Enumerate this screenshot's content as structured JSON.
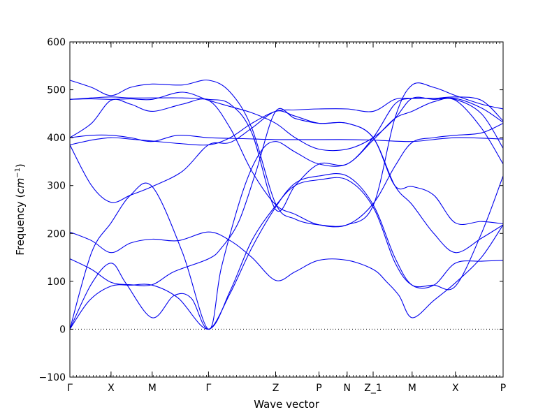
{
  "chart_data": {
    "type": "line",
    "title": "",
    "xlabel": "Wave vector",
    "ylabel": {
      "prefix": "Frequency (",
      "unit_main": "cm",
      "unit_sup": "−1",
      "suffix": ")"
    },
    "ylim": [
      -100,
      600
    ],
    "yticks": [
      -100,
      0,
      100,
      200,
      300,
      400,
      500,
      600
    ],
    "xlim": [
      0,
      10
    ],
    "high_symmetry_points": [
      {
        "label": "Γ",
        "x": 0
      },
      {
        "label": "X",
        "x": 0.95
      },
      {
        "label": "M",
        "x": 1.9
      },
      {
        "label": "Γ",
        "x": 3.2
      },
      {
        "label": "Z",
        "x": 4.75
      },
      {
        "label": "P",
        "x": 5.75
      },
      {
        "label": "N",
        "x": 6.4
      },
      {
        "label": "Z_1",
        "x": 7.0
      },
      {
        "label": "M",
        "x": 7.9
      },
      {
        "label": "X",
        "x": 8.9
      },
      {
        "label": "P",
        "x": 10
      }
    ],
    "zero_line": 0,
    "line_color": "#0000ee",
    "series": [
      {
        "points": [
          [
            0,
            0
          ],
          [
            0.5,
            95
          ],
          [
            0.95,
            138
          ],
          [
            1.3,
            95
          ],
          [
            1.9,
            24
          ],
          [
            2.4,
            70
          ],
          [
            2.8,
            65
          ],
          [
            3.2,
            0
          ],
          [
            3.7,
            75
          ],
          [
            4.2,
            170
          ],
          [
            4.75,
            255
          ],
          [
            5.2,
            305
          ],
          [
            5.75,
            320
          ],
          [
            6.4,
            320
          ],
          [
            7.0,
            260
          ],
          [
            7.5,
            150
          ],
          [
            7.9,
            92
          ],
          [
            8.4,
            92
          ],
          [
            8.9,
            138
          ],
          [
            9.5,
            142
          ],
          [
            10,
            144
          ]
        ]
      },
      {
        "points": [
          [
            0,
            0
          ],
          [
            0.45,
            60
          ],
          [
            0.95,
            90
          ],
          [
            1.4,
            92
          ],
          [
            1.9,
            92
          ],
          [
            2.5,
            65
          ],
          [
            3.2,
            0
          ],
          [
            3.7,
            80
          ],
          [
            4.2,
            185
          ],
          [
            4.75,
            258
          ],
          [
            5.2,
            300
          ],
          [
            5.75,
            312
          ],
          [
            6.4,
            312
          ],
          [
            7.0,
            255
          ],
          [
            7.5,
            140
          ],
          [
            7.9,
            92
          ],
          [
            8.4,
            92
          ],
          [
            8.9,
            90
          ],
          [
            9.5,
            200
          ],
          [
            10,
            320
          ]
        ]
      },
      {
        "points": [
          [
            0,
            0
          ],
          [
            0.5,
            160
          ],
          [
            0.95,
            222
          ],
          [
            1.4,
            280
          ],
          [
            1.9,
            298
          ],
          [
            2.6,
            160
          ],
          [
            3.2,
            0
          ],
          [
            3.5,
            130
          ],
          [
            4.0,
            290
          ],
          [
            4.4,
            370
          ],
          [
            4.75,
            392
          ],
          [
            5.2,
            370
          ],
          [
            5.75,
            345
          ],
          [
            6.4,
            345
          ],
          [
            7.0,
            395
          ],
          [
            7.5,
            440
          ],
          [
            7.9,
            455
          ],
          [
            8.4,
            475
          ],
          [
            8.9,
            478
          ],
          [
            9.5,
            420
          ],
          [
            10,
            345
          ]
        ]
      },
      {
        "points": [
          [
            0,
            147
          ],
          [
            0.5,
            125
          ],
          [
            0.95,
            98
          ],
          [
            1.4,
            93
          ],
          [
            1.9,
            93
          ],
          [
            2.4,
            120
          ],
          [
            3.2,
            147
          ],
          [
            3.5,
            170
          ],
          [
            3.9,
            225
          ],
          [
            4.3,
            330
          ],
          [
            4.75,
            455
          ],
          [
            5.2,
            440
          ],
          [
            5.75,
            430
          ],
          [
            6.4,
            430
          ],
          [
            7.0,
            400
          ],
          [
            7.5,
            300
          ],
          [
            7.9,
            298
          ],
          [
            8.4,
            280
          ],
          [
            8.9,
            222
          ],
          [
            9.5,
            225
          ],
          [
            10,
            220
          ]
        ]
      },
      {
        "points": [
          [
            0,
            203
          ],
          [
            0.5,
            185
          ],
          [
            0.95,
            160
          ],
          [
            1.4,
            180
          ],
          [
            1.9,
            188
          ],
          [
            2.5,
            185
          ],
          [
            3.2,
            203
          ],
          [
            3.7,
            185
          ],
          [
            4.2,
            150
          ],
          [
            4.75,
            102
          ],
          [
            5.2,
            120
          ],
          [
            5.75,
            144
          ],
          [
            6.4,
            144
          ],
          [
            7.0,
            125
          ],
          [
            7.3,
            100
          ],
          [
            7.6,
            70
          ],
          [
            7.9,
            24
          ],
          [
            8.4,
            60
          ],
          [
            8.9,
            97
          ],
          [
            9.5,
            150
          ],
          [
            10,
            218
          ]
        ]
      },
      {
        "points": [
          [
            0,
            385
          ],
          [
            0.5,
            300
          ],
          [
            0.95,
            265
          ],
          [
            1.4,
            280
          ],
          [
            1.9,
            298
          ],
          [
            2.6,
            330
          ],
          [
            3.2,
            385
          ],
          [
            3.7,
            390
          ],
          [
            4.2,
            420
          ],
          [
            4.75,
            455
          ],
          [
            5.2,
            445
          ],
          [
            5.75,
            430
          ],
          [
            6.4,
            430
          ],
          [
            7.0,
            400
          ],
          [
            7.5,
            300
          ],
          [
            7.9,
            260
          ],
          [
            8.4,
            200
          ],
          [
            8.9,
            160
          ],
          [
            9.5,
            190
          ],
          [
            10,
            218
          ]
        ]
      },
      {
        "points": [
          [
            0,
            400
          ],
          [
            0.5,
            405
          ],
          [
            0.95,
            405
          ],
          [
            1.4,
            400
          ],
          [
            1.9,
            392
          ],
          [
            2.5,
            405
          ],
          [
            3.2,
            400
          ],
          [
            4.0,
            398
          ],
          [
            4.75,
            396
          ],
          [
            5.75,
            396
          ],
          [
            6.4,
            396
          ],
          [
            7.0,
            395
          ],
          [
            7.9,
            392
          ],
          [
            8.9,
            400
          ],
          [
            10,
            397
          ]
        ]
      },
      {
        "points": [
          [
            0,
            400
          ],
          [
            0.5,
            430
          ],
          [
            0.95,
            478
          ],
          [
            1.4,
            470
          ],
          [
            1.9,
            455
          ],
          [
            2.6,
            470
          ],
          [
            3.2,
            478
          ],
          [
            3.7,
            420
          ],
          [
            4.2,
            330
          ],
          [
            4.75,
            260
          ],
          [
            5.2,
            240
          ],
          [
            5.75,
            218
          ],
          [
            6.4,
            218
          ],
          [
            7.0,
            262
          ],
          [
            7.5,
            340
          ],
          [
            7.9,
            390
          ],
          [
            8.4,
            400
          ],
          [
            8.9,
            405
          ],
          [
            9.5,
            410
          ],
          [
            10,
            430
          ]
        ]
      },
      {
        "points": [
          [
            0,
            385
          ],
          [
            0.5,
            395
          ],
          [
            0.95,
            400
          ],
          [
            1.4,
            397
          ],
          [
            1.9,
            393
          ],
          [
            2.5,
            388
          ],
          [
            3.2,
            385
          ],
          [
            3.7,
            400
          ],
          [
            4.2,
            430
          ],
          [
            4.75,
            455
          ],
          [
            5.2,
            458
          ],
          [
            5.75,
            460
          ],
          [
            6.4,
            460
          ],
          [
            7.0,
            455
          ],
          [
            7.5,
            480
          ],
          [
            7.9,
            482
          ],
          [
            8.4,
            482
          ],
          [
            8.9,
            480
          ],
          [
            9.5,
            450
          ],
          [
            10,
            378
          ]
        ]
      },
      {
        "points": [
          [
            0,
            520
          ],
          [
            0.5,
            505
          ],
          [
            0.95,
            488
          ],
          [
            1.4,
            505
          ],
          [
            1.9,
            512
          ],
          [
            2.6,
            510
          ],
          [
            3.2,
            520
          ],
          [
            3.7,
            495
          ],
          [
            4.2,
            420
          ],
          [
            4.75,
            262
          ],
          [
            5.2,
            230
          ],
          [
            5.75,
            218
          ],
          [
            6.4,
            218
          ],
          [
            7.0,
            258
          ],
          [
            7.5,
            440
          ],
          [
            7.9,
            510
          ],
          [
            8.4,
            505
          ],
          [
            8.9,
            488
          ],
          [
            9.5,
            470
          ],
          [
            10,
            460
          ]
        ]
      },
      {
        "points": [
          [
            0,
            480
          ],
          [
            0.5,
            483
          ],
          [
            0.95,
            485
          ],
          [
            1.4,
            483
          ],
          [
            1.9,
            483
          ],
          [
            2.6,
            483
          ],
          [
            3.2,
            480
          ],
          [
            3.7,
            470
          ],
          [
            4.2,
            410
          ],
          [
            4.75,
            250
          ],
          [
            5.2,
            300
          ],
          [
            5.75,
            345
          ],
          [
            6.4,
            345
          ],
          [
            7.0,
            400
          ],
          [
            7.5,
            470
          ],
          [
            7.9,
            482
          ],
          [
            8.4,
            482
          ],
          [
            8.9,
            485
          ],
          [
            9.5,
            478
          ],
          [
            10,
            435
          ]
        ]
      },
      {
        "points": [
          [
            0,
            480
          ],
          [
            0.5,
            481
          ],
          [
            0.95,
            480
          ],
          [
            1.4,
            481
          ],
          [
            1.9,
            480
          ],
          [
            2.6,
            495
          ],
          [
            3.2,
            478
          ],
          [
            3.7,
            465
          ],
          [
            4.2,
            452
          ],
          [
            4.75,
            430
          ],
          [
            5.2,
            400
          ],
          [
            5.75,
            376
          ],
          [
            6.4,
            376
          ],
          [
            7.0,
            400
          ],
          [
            7.5,
            440
          ],
          [
            7.9,
            482
          ],
          [
            8.4,
            480
          ],
          [
            8.9,
            482
          ],
          [
            9.5,
            462
          ],
          [
            10,
            432
          ]
        ]
      }
    ]
  }
}
